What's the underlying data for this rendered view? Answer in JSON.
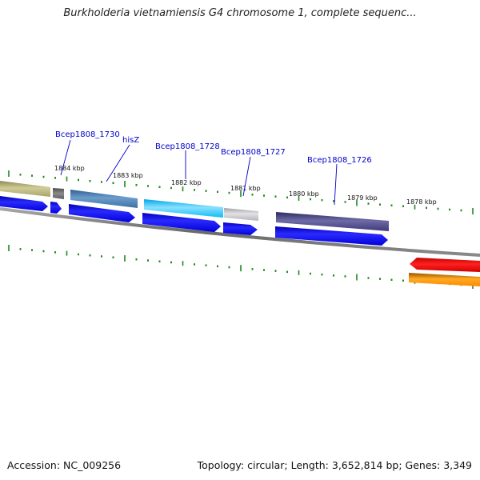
{
  "map": {
    "title": "Burkholderia vietnamiensis G4 chromosome 1, complete sequenc...",
    "accession": "Accession: NC_009256",
    "summary": "Topology: circular; Length: 3,652,814 bp; Genes: 3,349"
  },
  "scale_labels": [
    "1884 kbp",
    "1883 kbp",
    "1882 kbp",
    "1881 kbp",
    "1880 kbp",
    "1879 kbp",
    "1878 kbp"
  ],
  "gene_labels": [
    "Bcep1808_1730",
    "hisZ",
    "Bcep1808_1728",
    "Bcep1808_1727",
    "Bcep1808_1726"
  ],
  "colors": {
    "backbone": "#7a7a7a",
    "tick": "#1f8a1f",
    "cds_arrow": "#0000ee",
    "label": "#0000cc",
    "reverse_strand_red": "#ee0000",
    "reverse_strand_orange": "#ff8800"
  }
}
